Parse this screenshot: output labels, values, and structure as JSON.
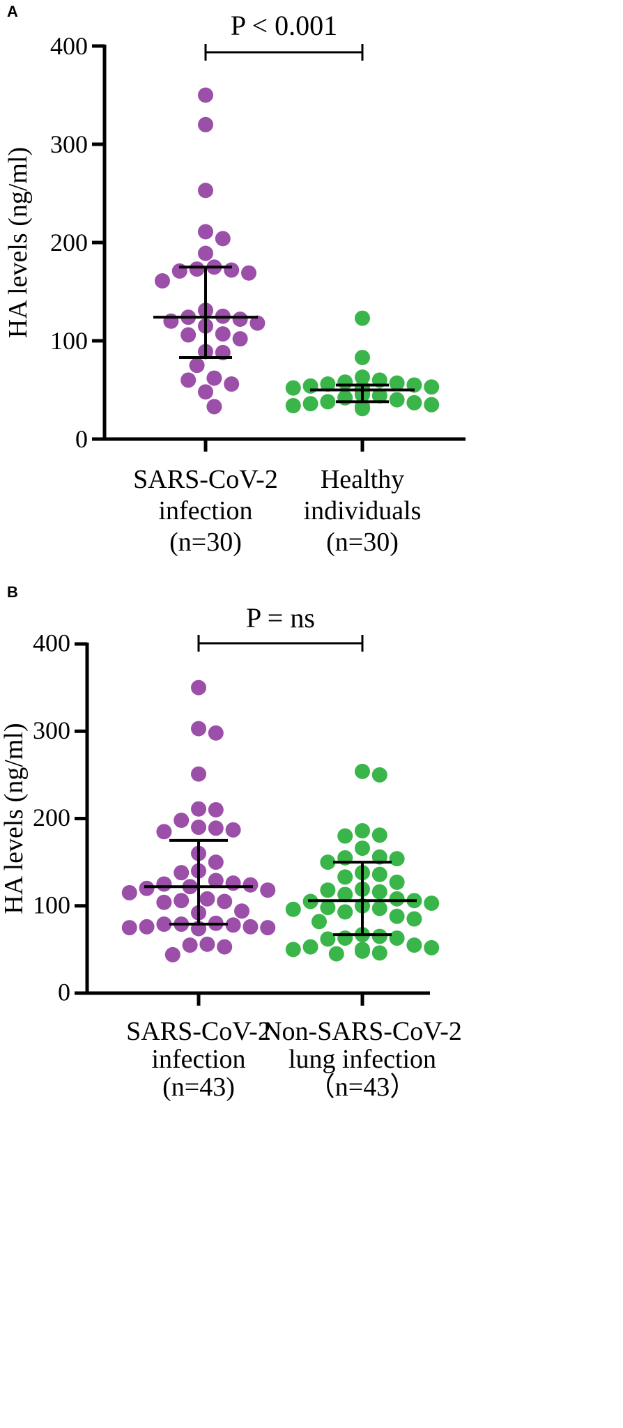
{
  "chart_data": [
    {
      "panel": "A",
      "type": "scatter",
      "ylabel": "HA levels (ng/ml)",
      "ylim": [
        0,
        400
      ],
      "yticks": [
        0,
        100,
        200,
        300,
        400
      ],
      "significance": "P < 0.001",
      "groups": [
        {
          "name_lines": [
            "SARS-CoV-2",
            "infection",
            "(n=30)"
          ],
          "color": "#9b4fa8",
          "median": 124,
          "q1": 83,
          "q3": 175,
          "points": [
            350,
            320,
            253,
            211,
            204,
            189,
            175,
            173,
            172,
            171,
            169,
            161,
            131,
            125,
            124,
            122,
            120,
            115,
            107,
            106,
            102,
            89,
            88,
            75,
            62,
            60,
            56,
            48,
            33,
            118
          ]
        },
        {
          "name_lines": [
            "Healthy",
            "individuals",
            "(n=30)"
          ],
          "color": "#39b54a",
          "median": 50,
          "q1": 38,
          "q3": 55,
          "points": [
            123,
            83,
            63,
            60,
            58,
            57,
            56,
            55,
            54,
            53,
            52,
            51,
            50,
            49,
            48,
            47,
            46,
            45,
            44,
            42,
            40,
            38,
            37,
            36,
            35,
            34,
            33,
            32,
            31,
            52
          ]
        }
      ]
    },
    {
      "panel": "B",
      "type": "scatter",
      "ylabel": "HA levels (ng/ml)",
      "ylim": [
        0,
        400
      ],
      "yticks": [
        0,
        100,
        200,
        300,
        400
      ],
      "significance": "P = ns",
      "groups": [
        {
          "name_lines": [
            "SARS-CoV-2",
            "infection",
            "(n=43)"
          ],
          "color": "#9b4fa8",
          "median": 122,
          "q1": 79,
          "q3": 175,
          "points": [
            350,
            303,
            298,
            251,
            211,
            210,
            198,
            190,
            189,
            187,
            160,
            150,
            140,
            138,
            129,
            126,
            125,
            124,
            122,
            120,
            118,
            115,
            108,
            106,
            105,
            104,
            94,
            92,
            80,
            79,
            79,
            78,
            76,
            76,
            75,
            75,
            74,
            74,
            56,
            55,
            53,
            44,
            185
          ]
        },
        {
          "name_lines": [
            "Non-SARS-CoV-2",
            "lung infection",
            "（n=43）"
          ],
          "color": "#39b54a",
          "median": 106,
          "q1": 67,
          "q3": 150,
          "points": [
            254,
            250,
            186,
            181,
            180,
            166,
            156,
            155,
            154,
            150,
            138,
            136,
            133,
            127,
            119,
            118,
            116,
            113,
            108,
            106,
            103,
            100,
            98,
            97,
            96,
            93,
            88,
            85,
            82,
            67,
            65,
            63,
            63,
            62,
            55,
            53,
            52,
            50,
            50,
            48,
            46,
            45,
            105
          ]
        }
      ]
    }
  ]
}
